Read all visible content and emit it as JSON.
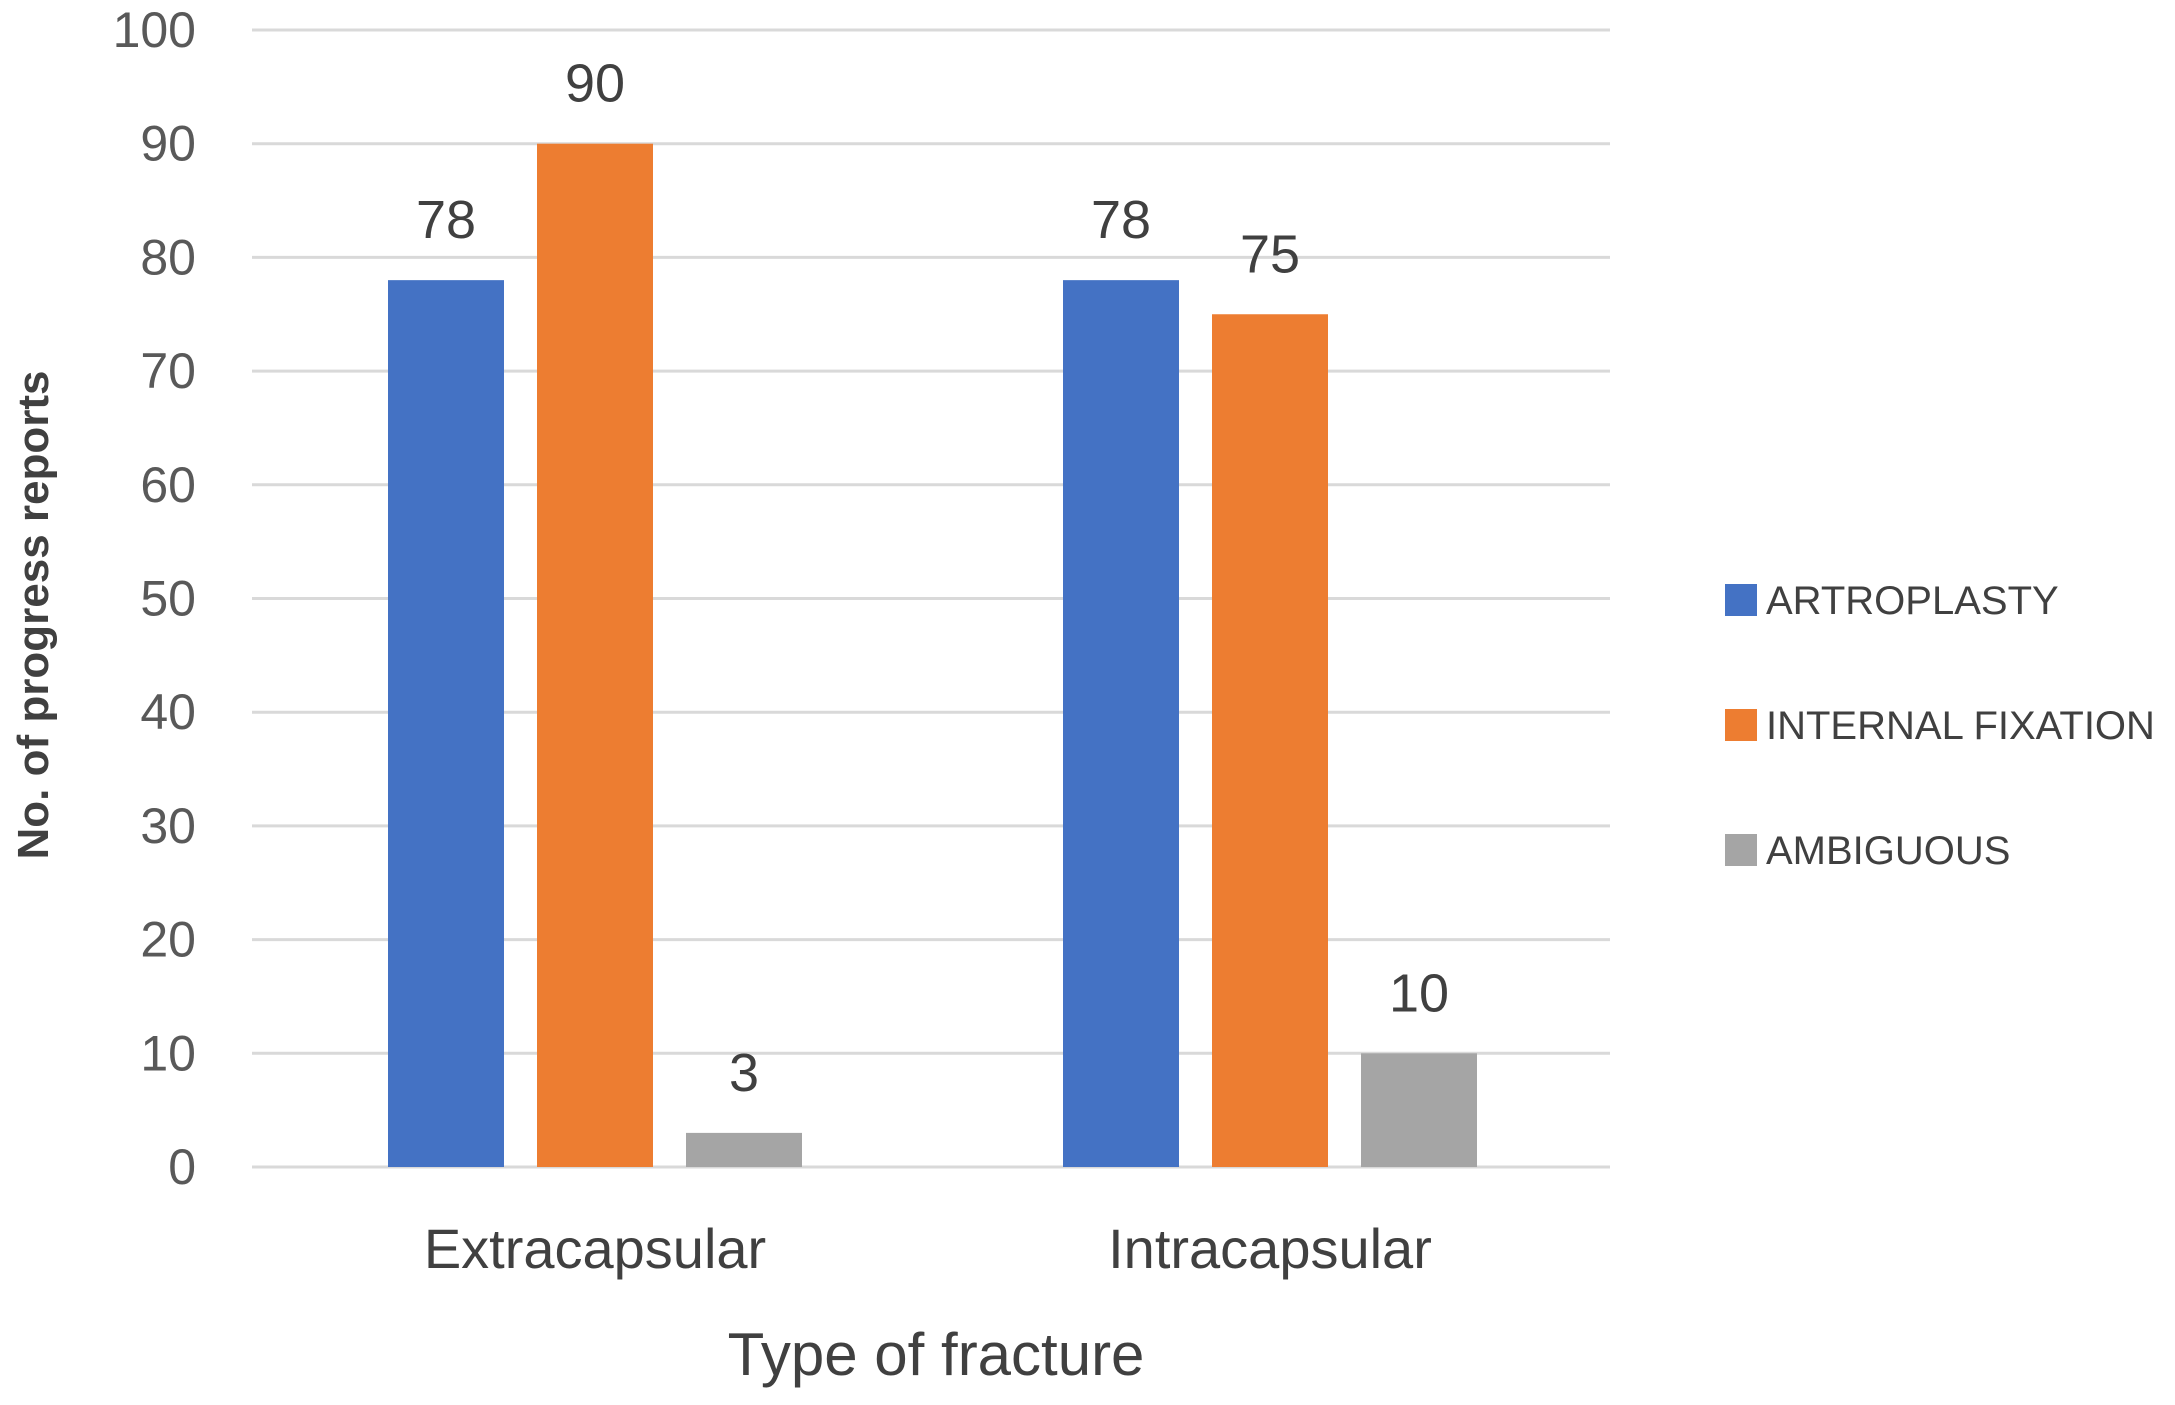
{
  "chart_data": {
    "type": "bar",
    "categories": [
      "Extracapsular",
      "Intracapsular"
    ],
    "series": [
      {
        "name": "ARTROPLASTY",
        "values": [
          78,
          78
        ],
        "color": "#4472c4"
      },
      {
        "name": "INTERNAL FIXATION",
        "values": [
          90,
          75
        ],
        "color": "#ed7d31"
      },
      {
        "name": "AMBIGUOUS",
        "values": [
          3,
          10
        ],
        "color": "#a5a5a5"
      }
    ],
    "data_labels": [
      [
        "78",
        "78"
      ],
      [
        "90",
        "75"
      ],
      [
        "3",
        "10"
      ]
    ],
    "title": "",
    "xlabel": "Type of fracture",
    "ylabel": "No. of progress reports",
    "ylim": [
      0,
      100
    ],
    "yticks": [
      0,
      10,
      20,
      30,
      40,
      50,
      60,
      70,
      80,
      90,
      100
    ],
    "ytick_labels": [
      "0",
      "10",
      "20",
      "30",
      "40",
      "50",
      "60",
      "70",
      "80",
      "90",
      "100"
    ],
    "grid": true,
    "legend_position": "right"
  }
}
